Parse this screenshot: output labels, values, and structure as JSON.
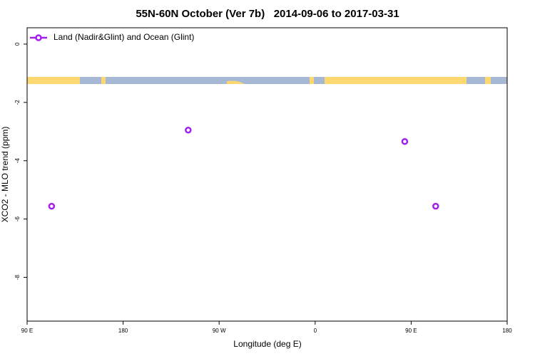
{
  "chart_data": {
    "type": "scatter",
    "title": "55N-60N October (Ver 7b)   2014-09-06 to 2017-03-31",
    "x_label": "Longitude (deg E)",
    "y_label": "XCO2 - MLO trend (ppm)",
    "series": [
      {
        "name": "Land (Nadir&Glint) and Ocean (Glint)",
        "color": "#a020f0",
        "x": [
          113,
          241,
          444,
          473
        ],
        "values": [
          -5.56,
          -2.95,
          -3.34,
          -5.56
        ]
      }
    ],
    "xlim": [
      90,
      540
    ],
    "xticks": [
      {
        "value": 90,
        "label": "90 E"
      },
      180,
      {
        "value": 270,
        "label": "90 W"
      },
      {
        "value": 360,
        "label": "0"
      },
      {
        "value": 450,
        "label": "90 E"
      },
      {
        "value": 540,
        "label": "180"
      }
    ],
    "ylim": [
      -9.5,
      0.56
    ],
    "yticks": [
      0,
      -2,
      -4,
      -6,
      -8
    ],
    "legend": "top-left"
  }
}
